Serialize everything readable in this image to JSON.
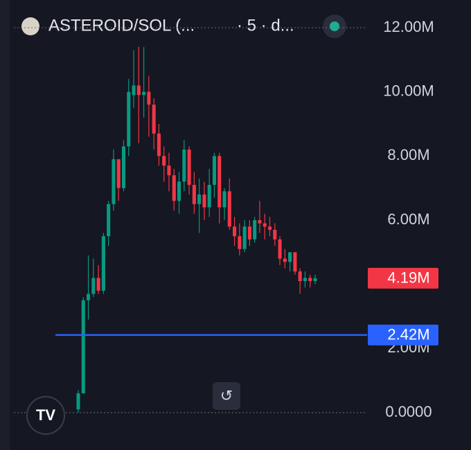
{
  "chart_data": {
    "type": "candlestick",
    "title": "ASTEROID/SOL (...",
    "subtitle": "· 5 · d...",
    "up_color": "#089981",
    "down_color": "#f23645",
    "open": [
      0.1,
      0.6,
      3.5,
      3.7,
      4.2,
      3.8,
      5.5,
      6.5,
      7.9,
      7.0,
      8.3,
      9.9,
      10.2,
      9.9,
      10.0,
      9.6,
      8.7,
      8.0,
      7.7,
      7.4,
      6.6,
      7.2,
      8.2,
      7.1,
      6.5,
      6.8,
      6.4,
      7.1,
      8.0,
      6.4,
      6.9,
      5.8,
      5.5,
      5.1,
      5.8,
      5.4,
      6.0,
      5.9,
      5.8,
      5.7,
      5.4,
      4.8,
      4.7,
      5.0,
      4.4,
      4.1,
      4.2,
      4.1
    ],
    "high": [
      0.7,
      3.6,
      4.9,
      4.8,
      4.6,
      5.6,
      6.6,
      8.2,
      7.9,
      8.5,
      10.4,
      11.3,
      11.4,
      11.4,
      10.5,
      9.8,
      9.0,
      8.3,
      8.1,
      7.6,
      7.5,
      8.5,
      8.3,
      7.5,
      7.3,
      7.2,
      7.6,
      8.1,
      8.1,
      7.0,
      7.3,
      6.1,
      5.9,
      6.0,
      6.0,
      6.1,
      6.6,
      6.2,
      6.1,
      5.9,
      5.5,
      5.1,
      5.0,
      5.0,
      4.5,
      4.4,
      4.3,
      4.3
    ],
    "low": [
      0.0,
      0.6,
      2.9,
      3.6,
      3.7,
      3.7,
      5.2,
      6.3,
      6.6,
      6.9,
      8.0,
      9.5,
      8.4,
      9.2,
      8.6,
      8.2,
      7.7,
      7.2,
      6.9,
      6.3,
      6.2,
      6.9,
      6.8,
      6.2,
      5.6,
      6.0,
      6.1,
      6.7,
      5.9,
      6.0,
      5.7,
      5.2,
      4.9,
      5.0,
      5.2,
      5.3,
      5.6,
      5.4,
      5.5,
      5.2,
      4.6,
      4.5,
      4.4,
      4.3,
      3.7,
      3.9,
      3.9,
      4.0
    ],
    "close": [
      0.6,
      3.5,
      3.7,
      4.2,
      3.8,
      5.5,
      6.5,
      7.9,
      7.0,
      8.3,
      10.0,
      10.2,
      9.9,
      10.0,
      9.6,
      8.7,
      8.0,
      7.7,
      7.4,
      6.6,
      7.2,
      8.2,
      7.1,
      6.5,
      6.8,
      6.4,
      7.1,
      8.0,
      6.4,
      6.9,
      5.8,
      5.5,
      5.1,
      5.8,
      5.4,
      6.0,
      5.9,
      5.8,
      5.7,
      5.4,
      4.8,
      4.7,
      5.0,
      4.4,
      4.1,
      4.2,
      4.1,
      4.19
    ],
    "ylim": [
      0,
      12
    ],
    "yticks": [
      {
        "value": 0,
        "label": "0.0000"
      },
      {
        "value": 2,
        "label": "2.00M"
      },
      {
        "value": 6,
        "label": "6.00M"
      },
      {
        "value": 8,
        "label": "8.00M"
      },
      {
        "value": 10,
        "label": "10.00M"
      },
      {
        "value": 12,
        "label": "12.00M"
      }
    ],
    "last_price": {
      "value": 4.19,
      "label": "4.19M",
      "color": "#f23645"
    },
    "price_line": {
      "value": 2.42,
      "label": "2.42M",
      "color": "#2962ff"
    }
  }
}
